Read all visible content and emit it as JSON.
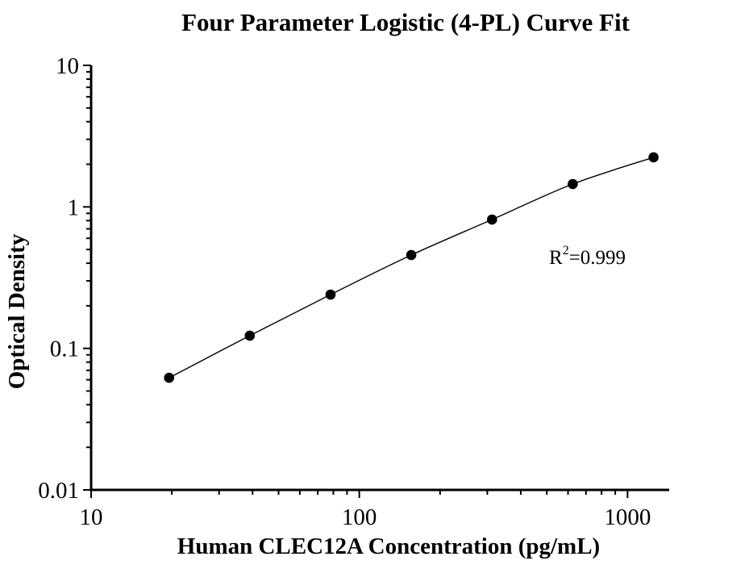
{
  "chart_data": {
    "type": "scatter",
    "title": "Four Parameter Logistic (4-PL) Curve Fit",
    "xlabel": "Human CLEC12A Concentration (pg/mL)",
    "ylabel": "Optical Density",
    "x_scale": "log",
    "y_scale": "log",
    "xlim": [
      10,
      1430
    ],
    "ylim": [
      0.01,
      10
    ],
    "grid": false,
    "legend": "none",
    "x_major_ticks": [
      {
        "value": 10,
        "label": "10"
      },
      {
        "value": 100,
        "label": "100"
      },
      {
        "value": 1000,
        "label": "1000"
      }
    ],
    "y_major_ticks": [
      {
        "value": 10,
        "label": "10"
      },
      {
        "value": 1,
        "label": "1"
      },
      {
        "value": 0.1,
        "label": "0.1"
      },
      {
        "value": 0.01,
        "label": "0.01"
      }
    ],
    "series": [
      {
        "name": "standard-curve",
        "marker": "filled-circle",
        "marker_color": "#000000",
        "line_color": "#000000",
        "x": [
          19.53,
          39.06,
          78.13,
          156.25,
          312.5,
          625,
          1250
        ],
        "y": [
          0.062,
          0.123,
          0.24,
          0.457,
          0.814,
          1.45,
          2.24
        ]
      }
    ],
    "annotation": {
      "base": "R",
      "sup": "2",
      "rest": "=0.999",
      "r_squared": "0.999"
    }
  }
}
